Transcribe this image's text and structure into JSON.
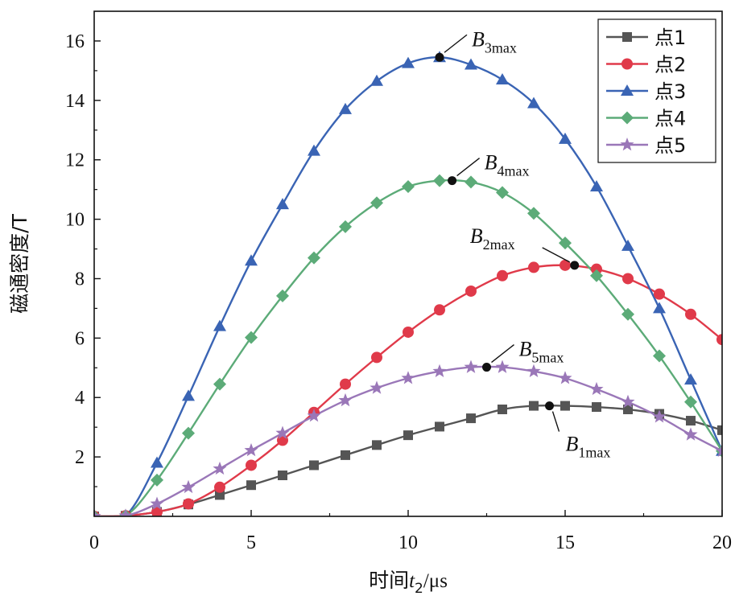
{
  "chart_data": {
    "type": "line",
    "xlabel": {
      "prefix": "时间",
      "var": "t",
      "sub": "2",
      "unit": "/μs"
    },
    "ylabel": "磁通密度/T",
    "xlim": [
      0,
      20
    ],
    "ylim": [
      0,
      17
    ],
    "x_ticks": [
      0,
      5,
      10,
      15,
      20
    ],
    "y_ticks": [
      2,
      4,
      6,
      8,
      10,
      12,
      14,
      16
    ],
    "x_tick_labels": [
      "0",
      "5",
      "10",
      "15",
      "20"
    ],
    "y_tick_labels": [
      "2",
      "4",
      "6",
      "8",
      "10",
      "12",
      "14",
      "16"
    ],
    "legend_position": "top-right",
    "series": [
      {
        "name": "点1",
        "color": "#555555",
        "marker": "square",
        "x": [
          0,
          1,
          2,
          3,
          4,
          5,
          6,
          7,
          8,
          9,
          10,
          11,
          12,
          13,
          14,
          15,
          16,
          17,
          18,
          19,
          20
        ],
        "y": [
          0,
          0.02,
          0.15,
          0.4,
          0.72,
          1.05,
          1.38,
          1.72,
          2.06,
          2.4,
          2.73,
          3.02,
          3.3,
          3.6,
          3.72,
          3.72,
          3.68,
          3.6,
          3.45,
          3.22,
          2.9
        ],
        "peak": {
          "x": 14.5,
          "y": 3.72,
          "label_main": "B",
          "label_sub": "1max",
          "label_pos": "below-right"
        }
      },
      {
        "name": "点2",
        "color": "#e03a4a",
        "marker": "circle",
        "x": [
          0,
          1,
          2,
          3,
          4,
          5,
          6,
          7,
          8,
          9,
          10,
          11,
          12,
          13,
          14,
          15,
          16,
          17,
          18,
          19,
          20
        ],
        "y": [
          0,
          0.02,
          0.15,
          0.42,
          0.98,
          1.72,
          2.56,
          3.5,
          4.45,
          5.35,
          6.2,
          6.95,
          7.58,
          8.1,
          8.38,
          8.45,
          8.32,
          8.0,
          7.48,
          6.8,
          5.95
        ],
        "peak": {
          "x": 15.3,
          "y": 8.45,
          "label_main": "B",
          "label_sub": "2max",
          "label_pos": "upper-left"
        }
      },
      {
        "name": "点3",
        "color": "#3a64b4",
        "marker": "triangle",
        "x": [
          0,
          1,
          2,
          3,
          4,
          5,
          6,
          7,
          8,
          9,
          10,
          11,
          12,
          13,
          14,
          15,
          16,
          17,
          18,
          19,
          20
        ],
        "y": [
          0,
          0.02,
          1.8,
          4.05,
          6.4,
          8.6,
          10.5,
          12.3,
          13.7,
          14.65,
          15.25,
          15.45,
          15.2,
          14.7,
          13.9,
          12.7,
          11.1,
          9.1,
          7.0,
          4.6,
          2.2
        ],
        "peak": {
          "x": 11.0,
          "y": 15.45,
          "label_main": "B",
          "label_sub": "3max",
          "label_pos": "upper-right"
        }
      },
      {
        "name": "点4",
        "color": "#5cab78",
        "marker": "diamond",
        "x": [
          0,
          1,
          2,
          3,
          4,
          5,
          6,
          7,
          8,
          9,
          10,
          11,
          12,
          13,
          14,
          15,
          16,
          17,
          18,
          19,
          20
        ],
        "y": [
          0,
          0.02,
          1.22,
          2.8,
          4.45,
          6.02,
          7.42,
          8.7,
          9.75,
          10.55,
          11.1,
          11.3,
          11.25,
          10.9,
          10.2,
          9.2,
          8.1,
          6.8,
          5.4,
          3.85,
          2.2
        ],
        "peak": {
          "x": 11.4,
          "y": 11.3,
          "label_main": "B",
          "label_sub": "4max",
          "label_pos": "upper-right"
        }
      },
      {
        "name": "点5",
        "color": "#9a77b8",
        "marker": "star",
        "x": [
          0,
          1,
          2,
          3,
          4,
          5,
          6,
          7,
          8,
          9,
          10,
          11,
          12,
          13,
          14,
          15,
          16,
          17,
          18,
          19,
          20
        ],
        "y": [
          0,
          0.02,
          0.42,
          0.98,
          1.6,
          2.22,
          2.8,
          3.38,
          3.9,
          4.32,
          4.65,
          4.88,
          5.02,
          5.02,
          4.88,
          4.65,
          4.28,
          3.85,
          3.35,
          2.75,
          2.2
        ],
        "peak": {
          "x": 12.5,
          "y": 5.02,
          "label_main": "B",
          "label_sub": "5max",
          "label_pos": "upper-right"
        }
      }
    ]
  }
}
